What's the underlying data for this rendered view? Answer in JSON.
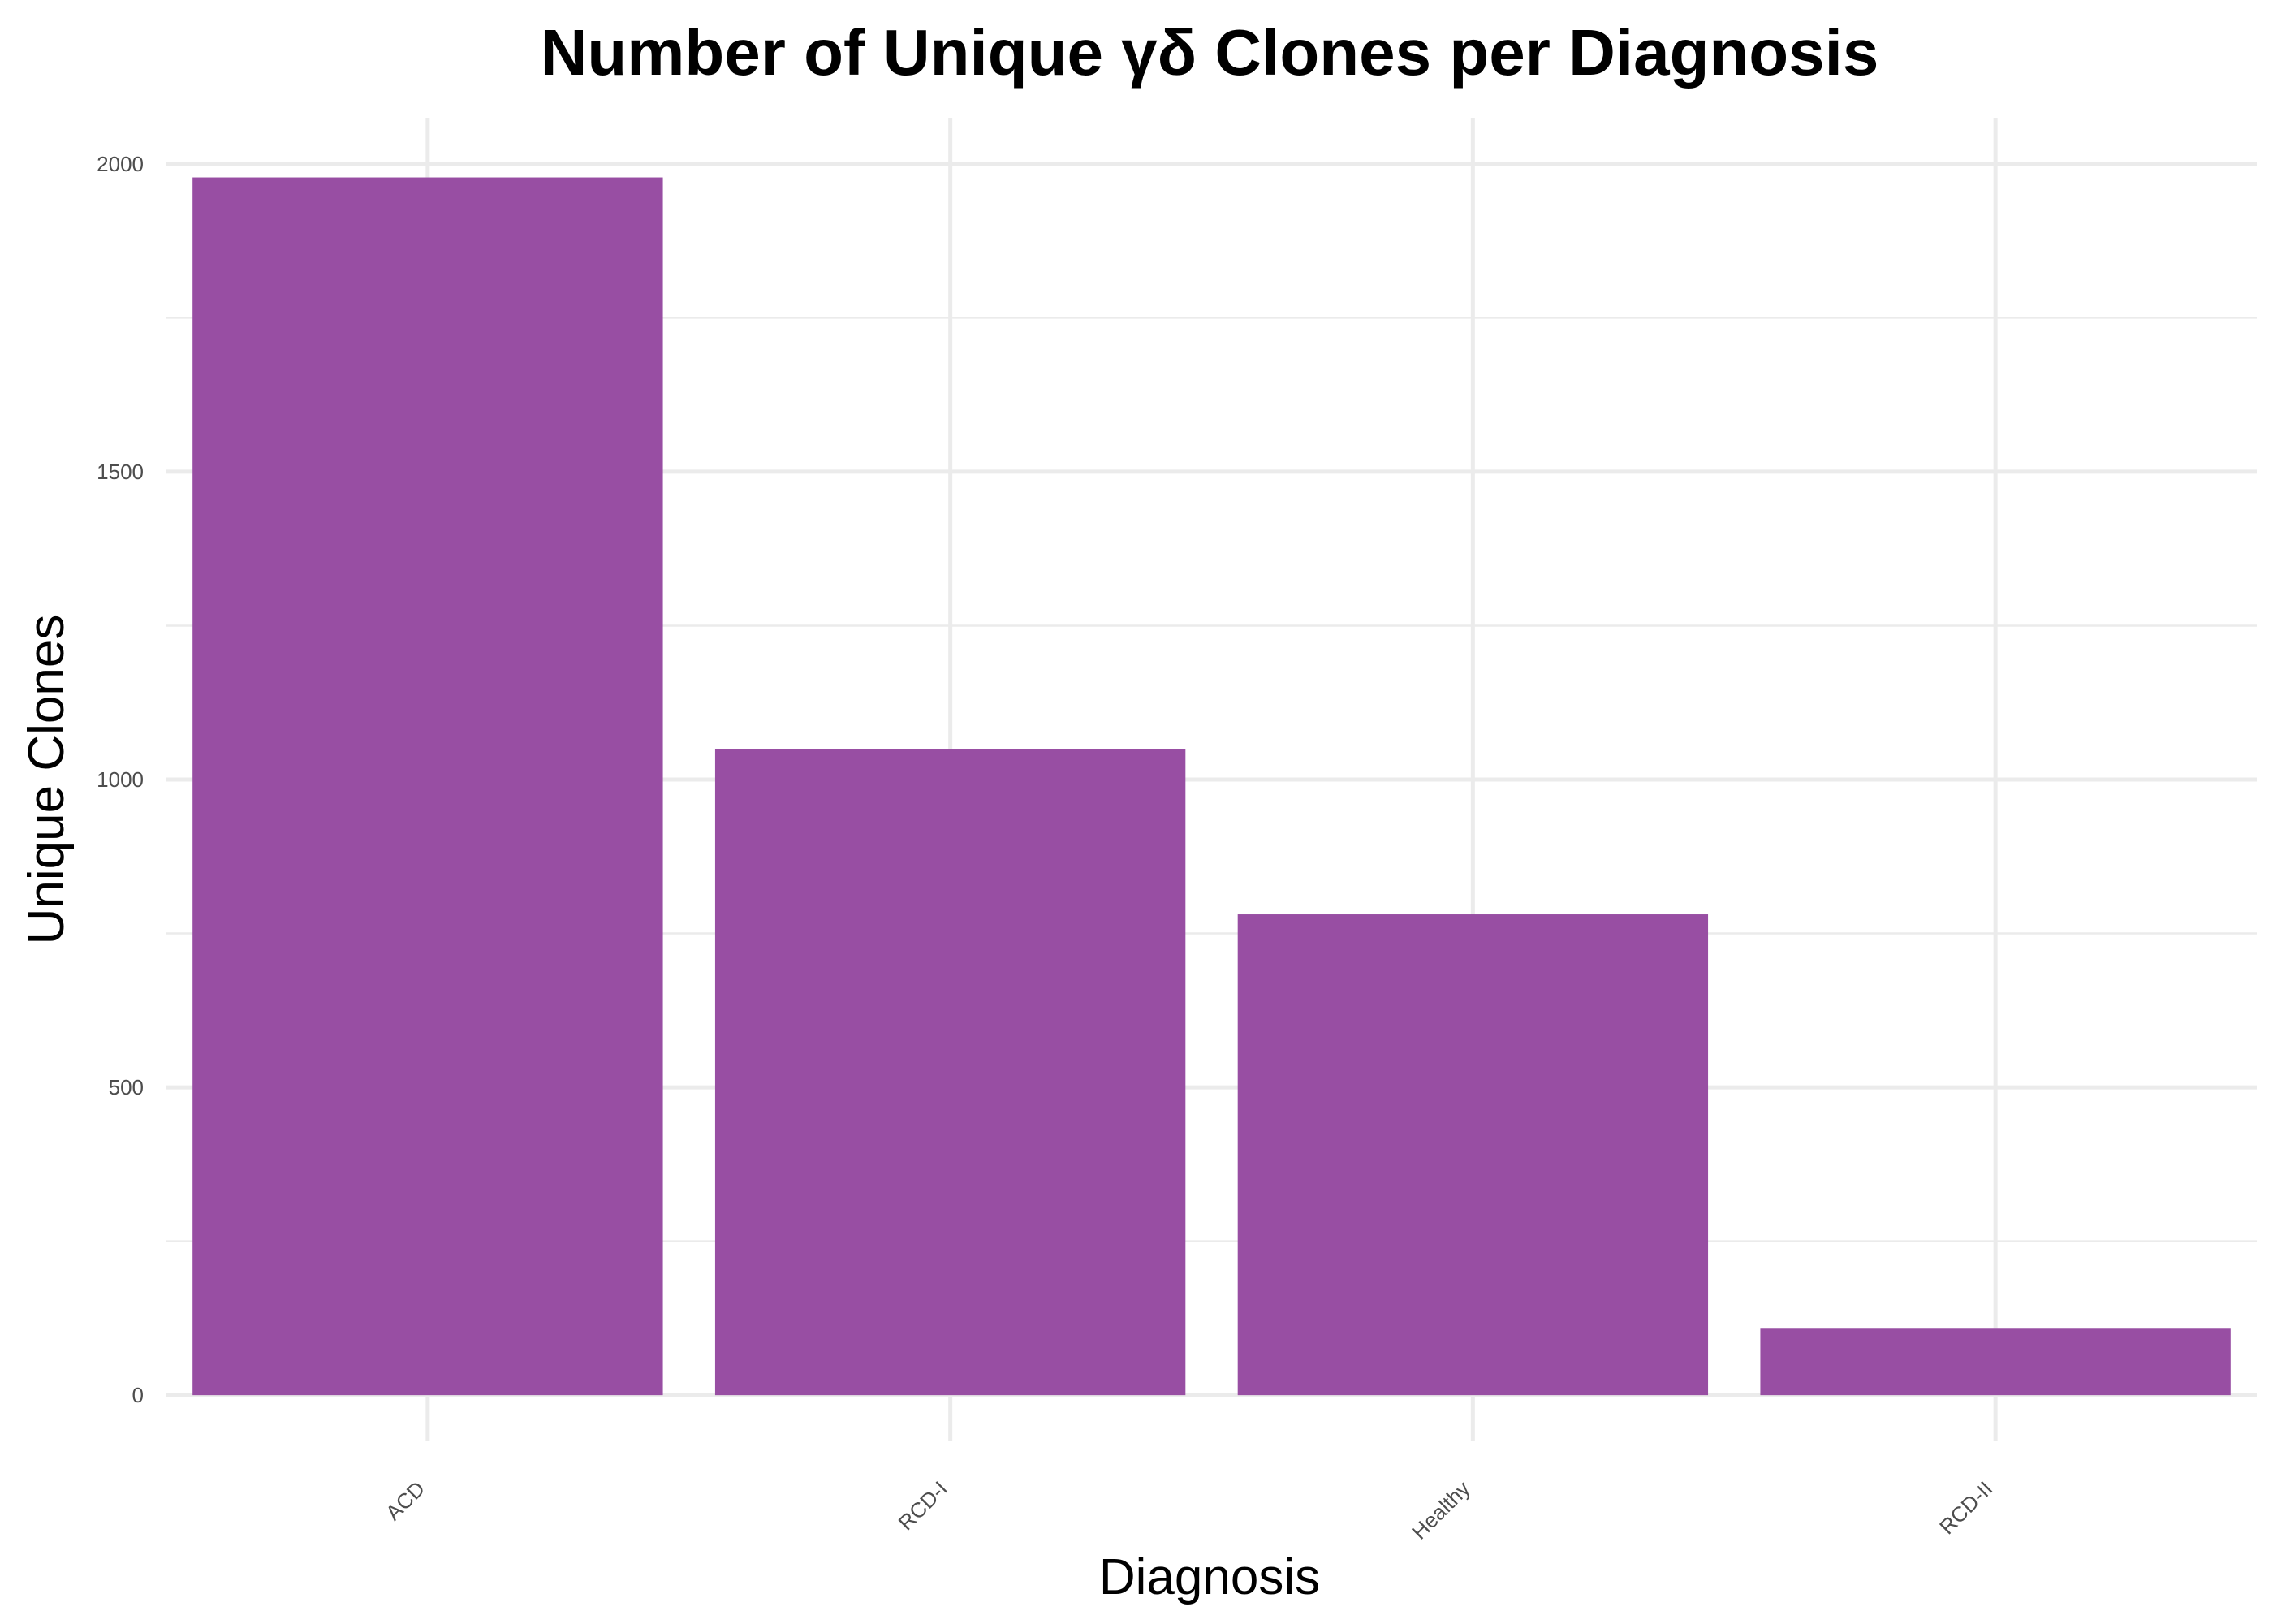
{
  "chart_data": {
    "type": "bar",
    "title": "Number of Unique γδ Clones per Diagnosis",
    "xlabel": "Diagnosis",
    "ylabel": "Unique Clones",
    "categories": [
      "ACD",
      "RCD-I",
      "Healthy",
      "RCD-II"
    ],
    "values": [
      1978,
      1050,
      781,
      108
    ],
    "ylim": [
      -75,
      2075
    ],
    "yticks": [
      0,
      500,
      1000,
      1500,
      2000
    ],
    "grid": true,
    "legend": "none",
    "bar_color": "#984EA3"
  }
}
